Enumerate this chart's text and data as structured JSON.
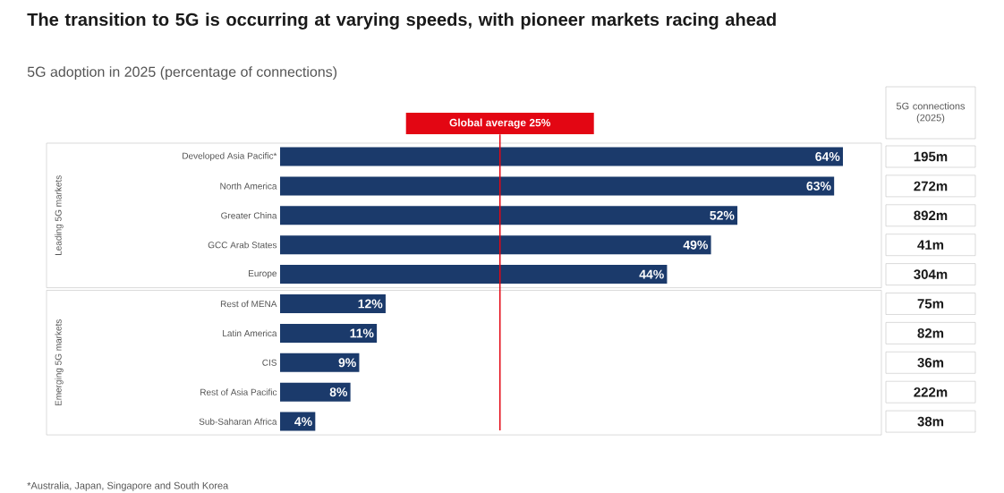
{
  "chart_data": {
    "type": "bar",
    "orientation": "horizontal",
    "title": "The transition to 5G is occurring at varying speeds, with pioneer markets racing ahead",
    "subtitle": "5G adoption in 2025 (percentage of connections)",
    "categories": [
      "Developed Asia Pacific*",
      "North America",
      "Greater China",
      "GCC Arab States",
      "Europe",
      "Rest of MENA",
      "Latin America",
      "CIS",
      "Rest of Asia Pacific",
      "Sub-Saharan Africa"
    ],
    "values": [
      64,
      63,
      52,
      49,
      44,
      12,
      11,
      9,
      8,
      4
    ],
    "value_labels": [
      "64%",
      "63%",
      "52%",
      "49%",
      "44%",
      "12%",
      "11%",
      "9%",
      "8%",
      "4%"
    ],
    "color": "#1b3a6b",
    "ref_lines": [
      {
        "axis": "x",
        "value": 25,
        "label": "Global average 25%",
        "color": "#e30613"
      }
    ],
    "annotations": [
      "5G connections (2025)",
      "195m",
      "272m",
      "892m",
      "41m",
      "304m",
      "75m",
      "82m",
      "36m",
      "222m",
      "38m",
      "Leading 5G markets",
      "Emerging 5G markets",
      "*Australia, Japan, Singapore and South Korea"
    ]
  }
}
